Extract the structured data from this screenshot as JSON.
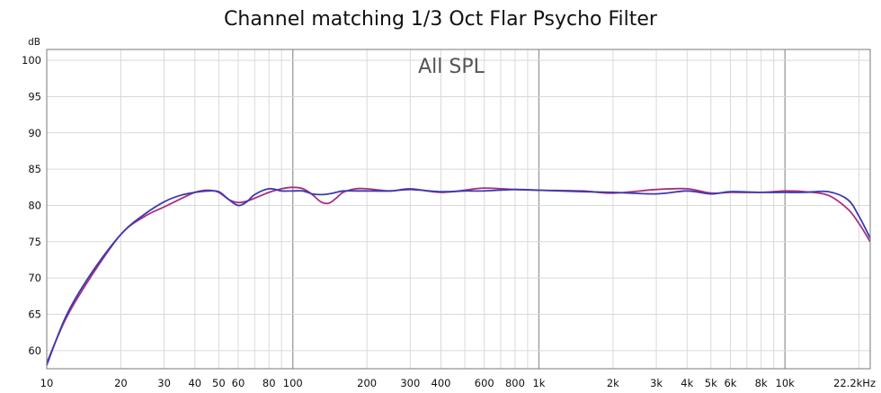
{
  "chart_data": {
    "type": "line",
    "title": "Channel matching 1/3 Oct Flar Psycho Filter",
    "subtitle": "All SPL",
    "ylabel": "dB",
    "xlabel": "",
    "xscale": "log",
    "xlim": [
      10,
      22200
    ],
    "ylim": [
      57.5,
      101.5
    ],
    "grid": true,
    "y_ticks": [
      60,
      65,
      70,
      75,
      80,
      85,
      90,
      95,
      100
    ],
    "x_ticks": [
      10,
      20,
      30,
      40,
      50,
      60,
      80,
      100,
      200,
      300,
      400,
      600,
      800,
      1000,
      2000,
      3000,
      4000,
      5000,
      6000,
      8000,
      10000,
      22200
    ],
    "x_tick_labels": [
      "10",
      "20",
      "30",
      "40",
      "50",
      "60",
      "80",
      "100",
      "200",
      "300",
      "400",
      "600",
      "800",
      "1k",
      "2k",
      "3k",
      "4k",
      "5k",
      "6k",
      "8k",
      "10k",
      "22.2kHz"
    ],
    "series": [
      {
        "color": "#a8307e",
        "x": [
          10,
          12,
          15,
          20,
          25,
          30,
          35,
          40,
          45,
          50,
          55,
          60,
          65,
          70,
          80,
          90,
          100,
          110,
          120,
          130,
          140,
          150,
          160,
          180,
          200,
          250,
          300,
          400,
          500,
          600,
          800,
          1000,
          1500,
          2000,
          3000,
          4000,
          5000,
          6000,
          8000,
          10000,
          12000,
          15000,
          18000,
          20000,
          22200
        ],
        "values": [
          58.3,
          64.5,
          70.0,
          76.0,
          78.5,
          79.8,
          80.9,
          81.8,
          82.1,
          81.8,
          80.8,
          80.4,
          80.6,
          81.0,
          81.8,
          82.3,
          82.5,
          82.3,
          81.5,
          80.5,
          80.3,
          81.0,
          81.8,
          82.3,
          82.3,
          82.0,
          82.3,
          81.8,
          82.1,
          82.4,
          82.2,
          82.1,
          82.0,
          81.7,
          82.2,
          82.3,
          81.7,
          81.8,
          81.8,
          82.0,
          81.9,
          81.4,
          79.5,
          77.5,
          75.0
        ]
      },
      {
        "color": "#3a3ab0",
        "x": [
          10,
          12,
          15,
          20,
          25,
          30,
          35,
          40,
          45,
          50,
          55,
          60,
          65,
          70,
          80,
          90,
          100,
          110,
          120,
          130,
          140,
          150,
          160,
          180,
          200,
          250,
          300,
          400,
          500,
          600,
          800,
          1000,
          1500,
          2000,
          3000,
          4000,
          5000,
          6000,
          8000,
          10000,
          12000,
          15000,
          18000,
          20000,
          22200
        ],
        "values": [
          58.0,
          64.8,
          70.4,
          76.0,
          78.8,
          80.5,
          81.4,
          81.8,
          82.0,
          81.9,
          80.8,
          80.0,
          80.5,
          81.5,
          82.3,
          82.0,
          82.0,
          82.0,
          81.6,
          81.5,
          81.6,
          81.8,
          82.0,
          82.0,
          82.0,
          82.0,
          82.2,
          81.9,
          82.0,
          82.0,
          82.2,
          82.1,
          81.9,
          81.8,
          81.6,
          82.0,
          81.6,
          81.9,
          81.8,
          81.8,
          81.8,
          81.9,
          80.8,
          78.5,
          75.5
        ]
      }
    ]
  }
}
